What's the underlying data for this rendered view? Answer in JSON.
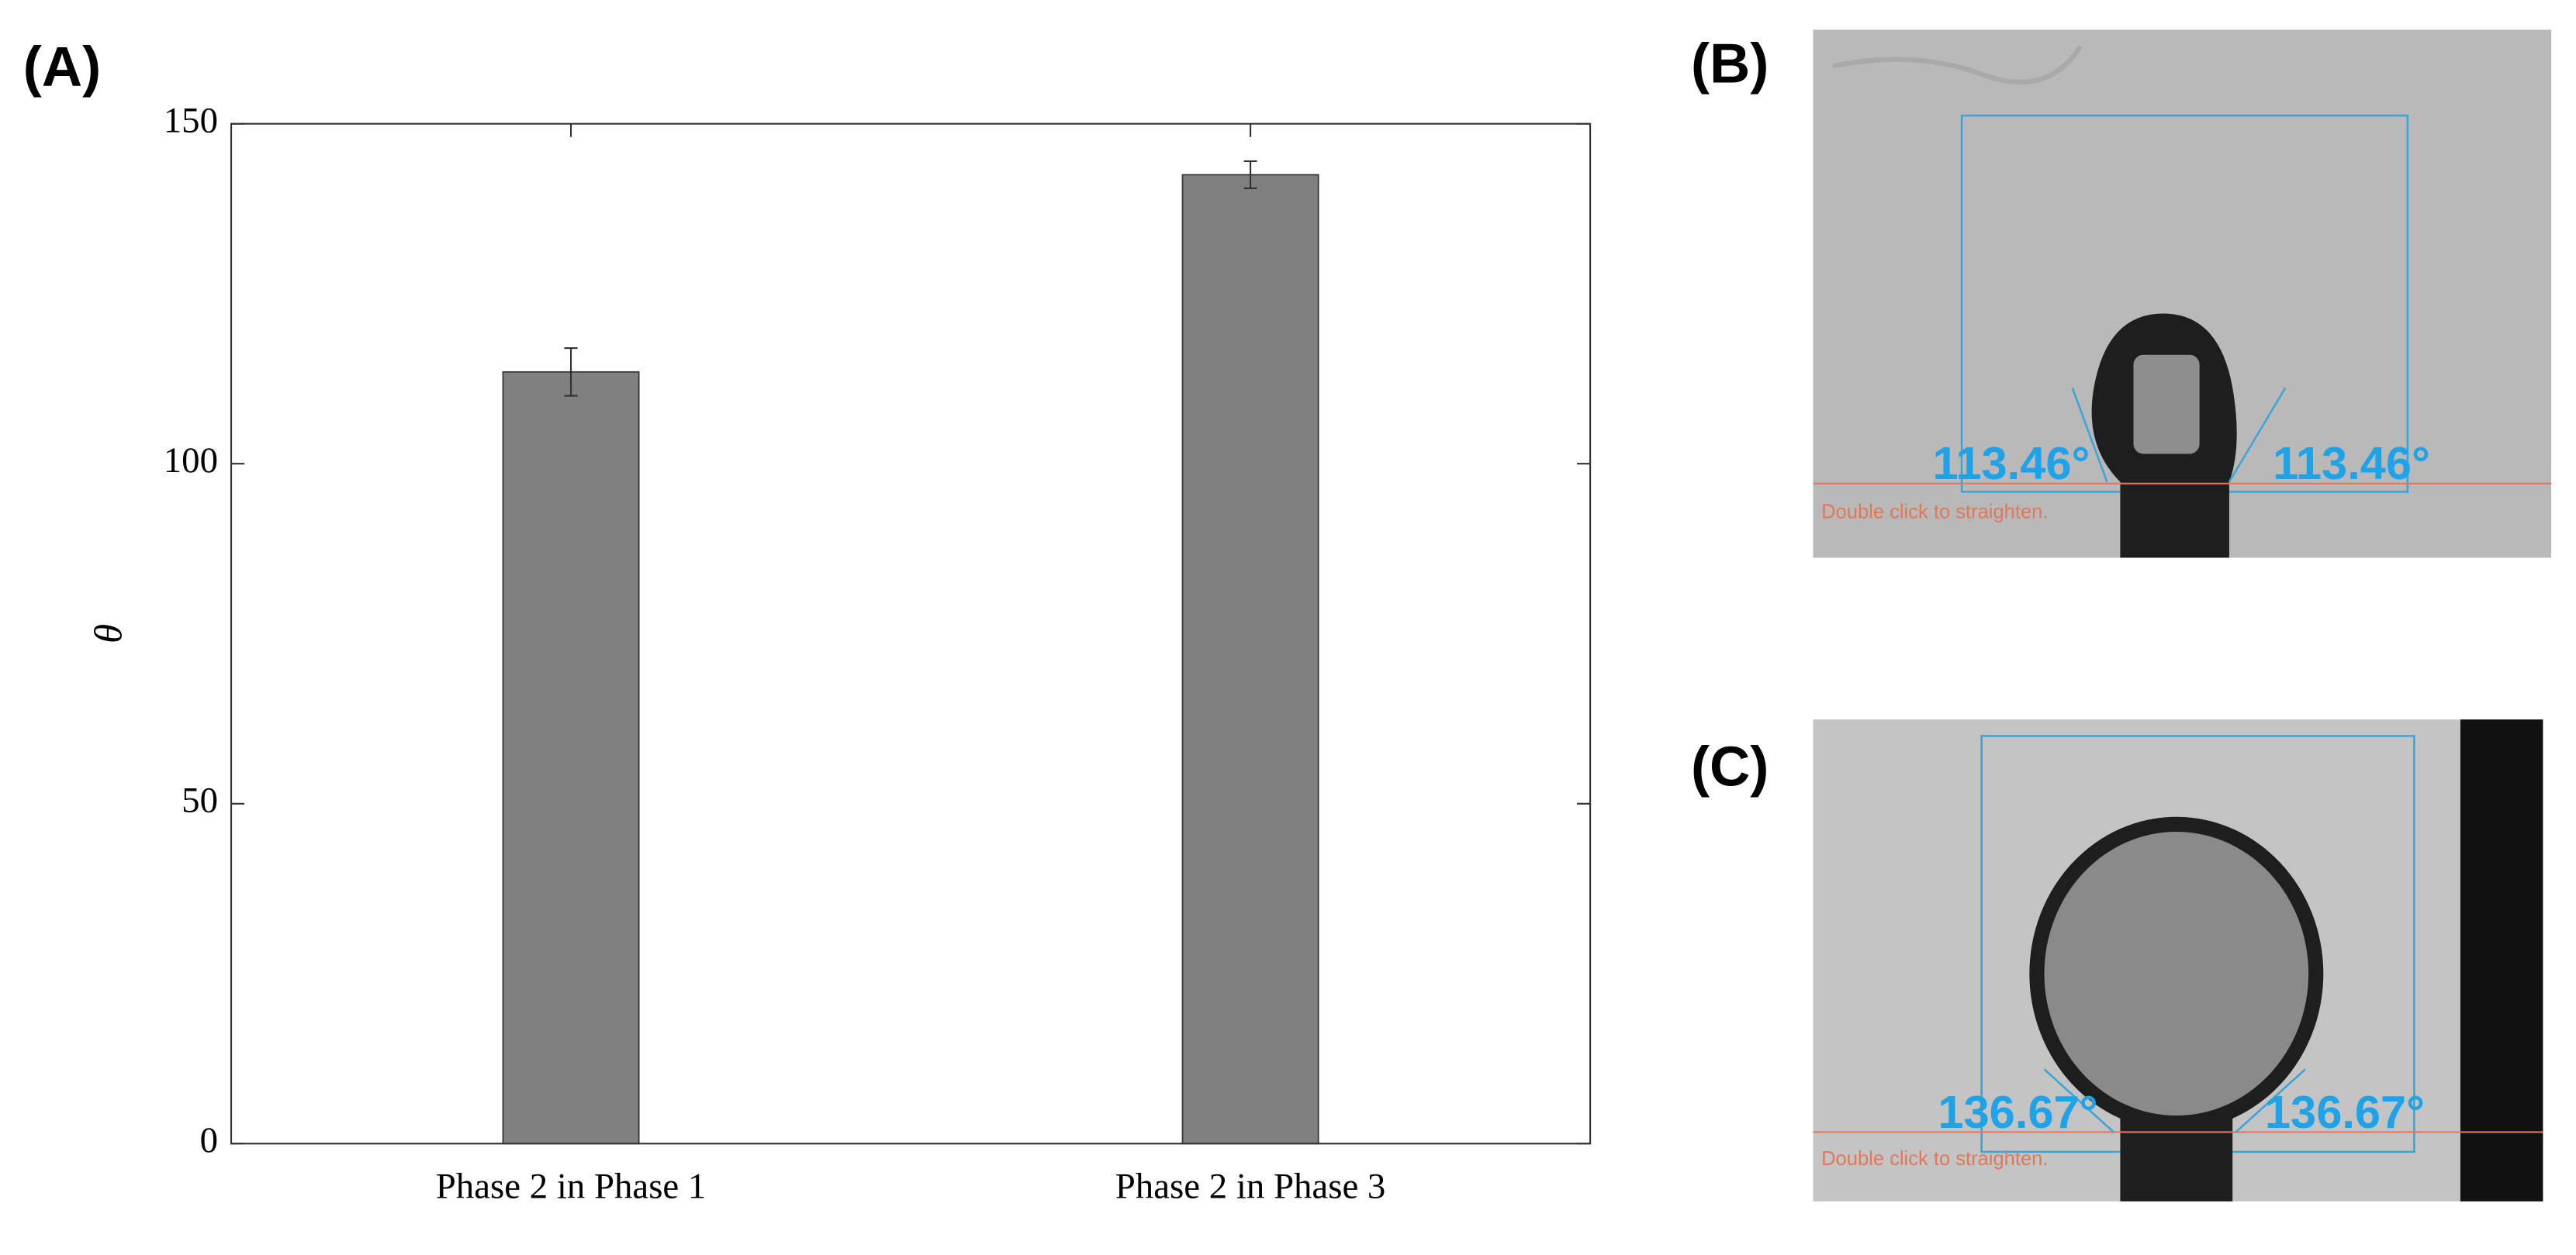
{
  "chart_data": {
    "type": "bar",
    "panel_label": "(A)",
    "ylabel": "θ",
    "categories": [
      "Phase 2 in Phase 1",
      "Phase 2 in Phase 3"
    ],
    "values": [
      113.5,
      142.5
    ],
    "errors": [
      3.5,
      2
    ],
    "color": "#808080",
    "xlim": [
      0.5,
      2.5
    ],
    "ylim": [
      0,
      150
    ],
    "yticks": [
      0,
      50,
      100,
      150
    ]
  },
  "images": [
    {
      "panel_label": "(B)",
      "left_angle": "113.46°",
      "right_angle": "113.46°",
      "hint": "Double click to straighten."
    },
    {
      "panel_label": "(C)",
      "left_angle": "136.67°",
      "right_angle": "136.67°",
      "hint": "Double click to straighten."
    }
  ]
}
